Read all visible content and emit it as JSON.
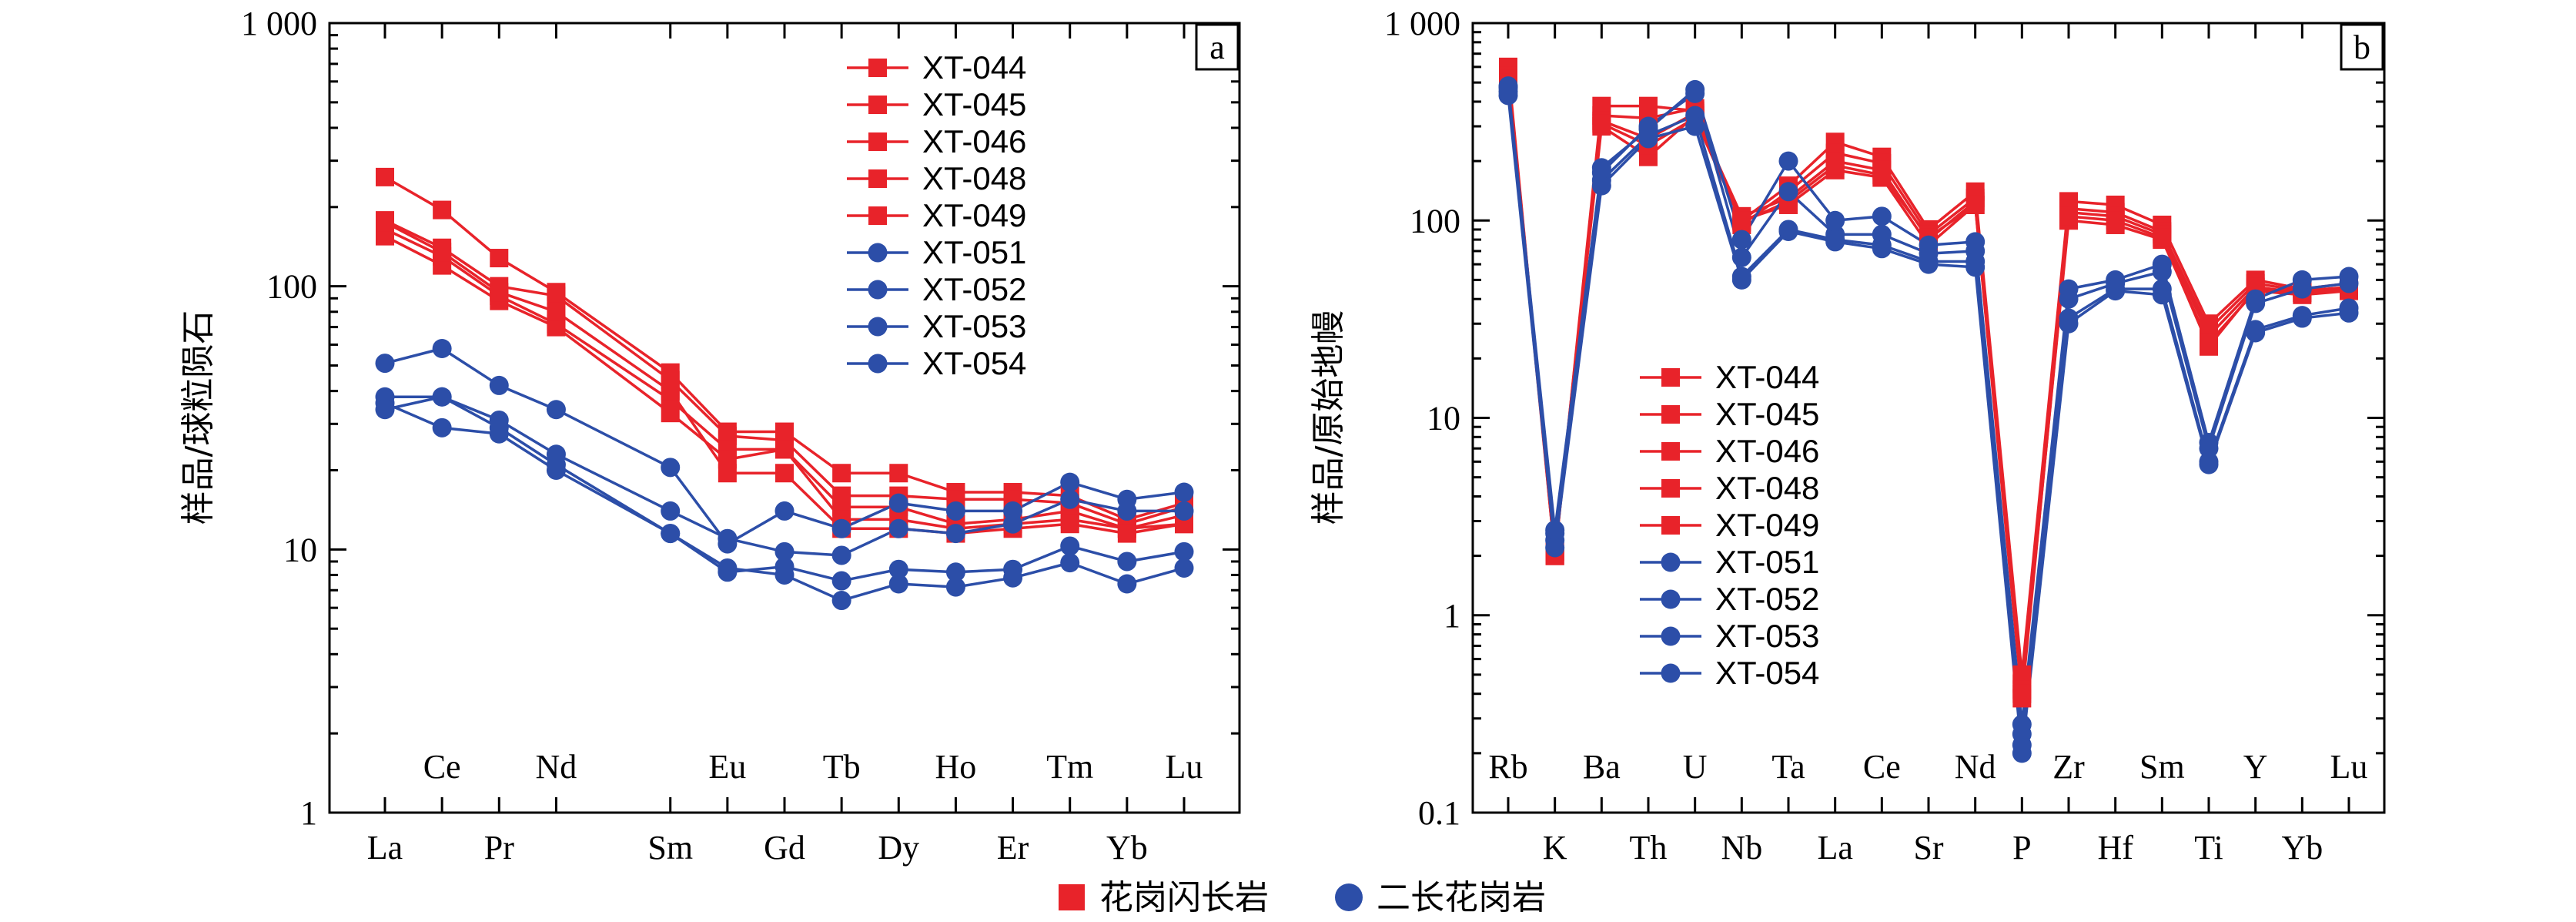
{
  "colors": {
    "granodiorite": "#E8232A",
    "monzogranite": "#2C4EA8"
  },
  "footer_legend": {
    "granodiorite": "花岗闪长岩",
    "monzogranite": "二长花岗岩"
  },
  "chart_data": [
    {
      "type": "line",
      "panel": "a",
      "ylabel": "样品/球粒陨石",
      "ylog": true,
      "ylim": [
        1,
        1000
      ],
      "yticks": [
        1,
        10,
        100,
        1000
      ],
      "ytick_labels": [
        "1",
        "10",
        "100",
        "1 000"
      ],
      "categories": [
        "La",
        "Ce",
        "Pr",
        "Nd",
        "Sm",
        "Eu",
        "Gd",
        "Tb",
        "Dy",
        "Ho",
        "Er",
        "Tm",
        "Yb",
        "Lu"
      ],
      "category_pos": [
        0,
        1,
        2,
        3,
        5,
        6,
        7,
        8,
        9,
        10,
        11,
        12,
        13,
        14
      ],
      "label_row": [
        0,
        1,
        0,
        1,
        0,
        1,
        0,
        1,
        0,
        1,
        0,
        1,
        0,
        1
      ],
      "legend_position": "top-right",
      "series": [
        {
          "name": "XT-044",
          "group": "granodiorite",
          "values": [
            260,
            195,
            128,
            95,
            47,
            28,
            28,
            19.5,
            19.5,
            16.5,
            16.5,
            16,
            13,
            15
          ]
        },
        {
          "name": "XT-045",
          "group": "granodiorite",
          "values": [
            178,
            140,
            100,
            92,
            44,
            27,
            26,
            16,
            16,
            15.5,
            15.5,
            15,
            12.5,
            14.5
          ]
        },
        {
          "name": "XT-046",
          "group": "granodiorite",
          "values": [
            165,
            130,
            92,
            72,
            37,
            24,
            24,
            14.5,
            14.5,
            12.5,
            13,
            14,
            12,
            13.5
          ]
        },
        {
          "name": "XT-048",
          "group": "granodiorite",
          "values": [
            155,
            120,
            88,
            70,
            33,
            22,
            24,
            13,
            13,
            12,
            12.5,
            13,
            12,
            12.5
          ]
        },
        {
          "name": "XT-049",
          "group": "granodiorite",
          "values": [
            175,
            135,
            95,
            80,
            40,
            19.5,
            19.5,
            12,
            12,
            11.5,
            12,
            12.5,
            11.5,
            12.5
          ]
        },
        {
          "name": "XT-051",
          "group": "monzogranite",
          "values": [
            51,
            58,
            42,
            34,
            20.5,
            10.5,
            14,
            12,
            15,
            14,
            14,
            18,
            15.5,
            16.5
          ]
        },
        {
          "name": "XT-052",
          "group": "monzogranite",
          "values": [
            38,
            38,
            31,
            23,
            14,
            11,
            9.8,
            9.5,
            12,
            11.5,
            12.5,
            15.5,
            14,
            14
          ]
        },
        {
          "name": "XT-053",
          "group": "monzogranite",
          "values": [
            36,
            29,
            27.5,
            20,
            11.5,
            8.2,
            8.6,
            7.6,
            8.4,
            8.2,
            8.4,
            10.3,
            9,
            9.8
          ]
        },
        {
          "name": "XT-054",
          "group": "monzogranite",
          "values": [
            34,
            38,
            29,
            21,
            11.5,
            8.5,
            8,
            6.4,
            7.4,
            7.2,
            7.8,
            8.9,
            7.4,
            8.5
          ]
        }
      ]
    },
    {
      "type": "line",
      "panel": "b",
      "ylabel": "样品/原始地幔",
      "ylog": true,
      "ylim": [
        0.1,
        1000
      ],
      "yticks": [
        0.1,
        1,
        10,
        100,
        1000
      ],
      "ytick_labels": [
        "0.1",
        "1",
        "10",
        "100",
        "1 000"
      ],
      "categories": [
        "Rb",
        "K",
        "Ba",
        "Th",
        "U",
        "Nb",
        "Ta",
        "La",
        "Ce",
        "Sr",
        "Nd",
        "P",
        "Zr",
        "Hf",
        "Sm",
        "Ti",
        "Y",
        "Yb",
        "Lu"
      ],
      "category_pos": [
        0,
        1,
        2,
        3,
        4,
        5,
        6,
        7,
        8,
        9,
        10,
        11,
        12,
        13,
        14,
        15,
        16,
        17,
        18
      ],
      "label_row": [
        1,
        0,
        1,
        0,
        1,
        0,
        1,
        0,
        1,
        0,
        1,
        0,
        1,
        0,
        1,
        0,
        1,
        0,
        1
      ],
      "legend_position": "left",
      "series": [
        {
          "name": "XT-044",
          "group": "granodiorite",
          "values": [
            600,
            2.0,
            380,
            380,
            360,
            100,
            150,
            250,
            210,
            90,
            140,
            0.5,
            125,
            120,
            95,
            30,
            50,
            45,
            48
          ]
        },
        {
          "name": "XT-045",
          "group": "granodiorite",
          "values": [
            570,
            2.1,
            340,
            330,
            370,
            95,
            140,
            220,
            195,
            85,
            130,
            0.45,
            115,
            110,
            88,
            28,
            48,
            44,
            46
          ]
        },
        {
          "name": "XT-046",
          "group": "granodiorite",
          "values": [
            540,
            2.0,
            320,
            260,
            350,
            105,
            130,
            200,
            180,
            80,
            125,
            0.42,
            110,
            105,
            85,
            26,
            46,
            43,
            45
          ]
        },
        {
          "name": "XT-048",
          "group": "granodiorite",
          "values": [
            520,
            2.1,
            300,
            210,
            340,
            100,
            120,
            180,
            165,
            75,
            120,
            0.4,
            100,
            95,
            80,
            24,
            44,
            42,
            44
          ]
        },
        {
          "name": "XT-049",
          "group": "granodiorite",
          "values": [
            500,
            2.0,
            310,
            240,
            330,
            98,
            125,
            190,
            170,
            82,
            120,
            0.38,
            105,
            100,
            82,
            23,
            45,
            43,
            45
          ]
        },
        {
          "name": "XT-051",
          "group": "monzogranite",
          "values": [
            480,
            2.7,
            185,
            290,
            460,
            80,
            200,
            100,
            105,
            75,
            78,
            0.28,
            45,
            50,
            60,
            7.5,
            40,
            50,
            52
          ]
        },
        {
          "name": "XT-052",
          "group": "monzogranite",
          "values": [
            470,
            2.6,
            175,
            300,
            440,
            65,
            140,
            85,
            85,
            68,
            70,
            0.25,
            40,
            48,
            55,
            7.0,
            38,
            45,
            48
          ]
        },
        {
          "name": "XT-053",
          "group": "monzogranite",
          "values": [
            450,
            2.4,
            160,
            270,
            340,
            52,
            90,
            80,
            75,
            62,
            62,
            0.22,
            32,
            45,
            45,
            6.0,
            28,
            33,
            36
          ]
        },
        {
          "name": "XT-054",
          "group": "monzogranite",
          "values": [
            430,
            2.2,
            150,
            260,
            300,
            50,
            88,
            78,
            72,
            60,
            58,
            0.2,
            30,
            44,
            42,
            5.8,
            27,
            32,
            34
          ]
        }
      ]
    }
  ]
}
